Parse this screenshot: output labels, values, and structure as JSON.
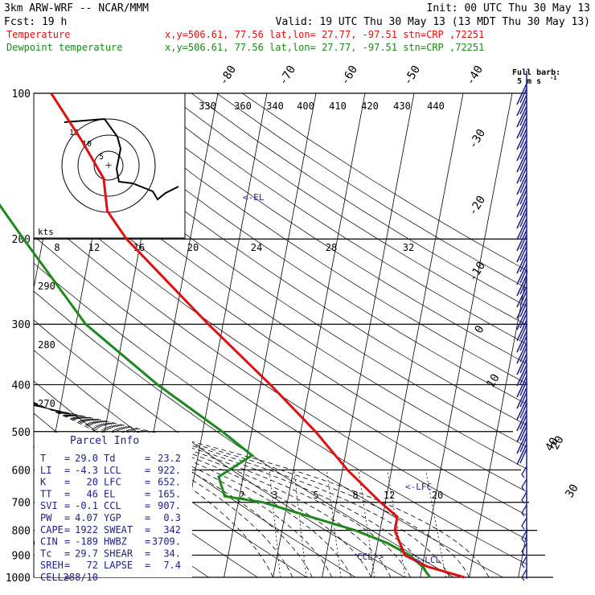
{
  "header": {
    "model": "3km ARW-WRF -- NCAR/MMM",
    "init": "Init: 00 UTC Thu 30 May 13",
    "fcst": "Fcst:    19 h",
    "valid": "Valid: 19 UTC Thu 30 May 13 (13 MDT Thu 30 May 13)"
  },
  "legend": [
    {
      "label": "Temperature",
      "info": "x,y=506.61, 77.56   lat,lon= 27.77, -97.51   stn=CRP ,72251",
      "color": "#e01010"
    },
    {
      "label": "Dewpoint temperature",
      "info": "x,y=506.61, 77.56   lat,lon= 27.77, -97.51   stn=CRP ,72251",
      "color": "#1a8a1a"
    }
  ],
  "colors": {
    "temperature": "#e01010",
    "dewpoint": "#1a8a1a",
    "wind": "#1e1e8c",
    "grid": "#000000",
    "text_blue": "#1e1e8c"
  },
  "chart_data": {
    "type": "line",
    "subtype": "skew-T log-p sounding",
    "pressure_levels": [
      100,
      200,
      300,
      400,
      500,
      600,
      700,
      800,
      900,
      1000
    ],
    "isotherm_labels": [
      "-80",
      "-70",
      "-60",
      "-50",
      "-40",
      "-30",
      "-20",
      "-10",
      "0",
      "10",
      "20",
      "30",
      "40"
    ],
    "theta_labels": [
      "330",
      "360",
      "340",
      "400",
      "410",
      "420",
      "430",
      "440"
    ],
    "theta_e_labels": [
      "290",
      "280",
      "270"
    ],
    "mixing_ratio_labels": [
      "2",
      "3",
      "5",
      "8",
      "12",
      "20"
    ],
    "series": [
      {
        "name": "Temperature",
        "points": [
          {
            "p": 100,
            "t": -74
          },
          {
            "p": 125,
            "t": -66
          },
          {
            "p": 150,
            "t": -60
          },
          {
            "p": 175,
            "t": -58
          },
          {
            "p": 200,
            "t": -53
          },
          {
            "p": 250,
            "t": -42
          },
          {
            "p": 300,
            "t": -33
          },
          {
            "p": 400,
            "t": -18
          },
          {
            "p": 500,
            "t": -7
          },
          {
            "p": 600,
            "t": 1
          },
          {
            "p": 700,
            "t": 9
          },
          {
            "p": 750,
            "t": 13
          },
          {
            "p": 800,
            "t": 13
          },
          {
            "p": 900,
            "t": 16
          },
          {
            "p": 950,
            "t": 21
          },
          {
            "p": 1000,
            "t": 29
          }
        ]
      },
      {
        "name": "Dewpoint temperature",
        "points": [
          {
            "p": 100,
            "t": -86
          },
          {
            "p": 150,
            "t": -85
          },
          {
            "p": 200,
            "t": -74
          },
          {
            "p": 300,
            "t": -58
          },
          {
            "p": 400,
            "t": -41
          },
          {
            "p": 500,
            "t": -26
          },
          {
            "p": 560,
            "t": -19
          },
          {
            "p": 620,
            "t": -25
          },
          {
            "p": 680,
            "t": -23
          },
          {
            "p": 700,
            "t": -15
          },
          {
            "p": 800,
            "t": 5
          },
          {
            "p": 850,
            "t": 12
          },
          {
            "p": 900,
            "t": 17
          },
          {
            "p": 950,
            "t": 20
          },
          {
            "p": 1000,
            "t": 22
          }
        ]
      }
    ],
    "level_markers": [
      "<-EL",
      "<-LFC",
      "<-LCL",
      "CCL->"
    ],
    "hodograph": {
      "unit_label": "kts",
      "speed_rings": [
        "5",
        "10",
        "15"
      ],
      "x_labels": [
        "8",
        "12",
        "16",
        "20",
        "24",
        "28",
        "32"
      ]
    },
    "wind_barb_key": {
      "label": "Full barb:",
      "value": "5 m s",
      "unit_sup": "-1"
    },
    "parcel_info": {
      "title": "Parcel Info",
      "rows": [
        [
          "T",
          "29.0",
          "Td",
          "23.2"
        ],
        [
          "LI",
          "-4.3",
          "LCL",
          "922."
        ],
        [
          "K",
          "20",
          "LFC",
          "652."
        ],
        [
          "TT",
          "46",
          "EL",
          "165."
        ],
        [
          "SVI",
          "-0.1",
          "CCL",
          "907."
        ],
        [
          "PW",
          "4.07",
          "YGP",
          "0.3"
        ],
        [
          "CAPE",
          "1922",
          "SWEAT",
          "342"
        ],
        [
          "CIN",
          "-189",
          "HWBZ",
          "3709."
        ],
        [
          "Tc",
          "29.7",
          "SHEAR",
          "34."
        ],
        [
          "SREH",
          "72",
          "LAPSE",
          "7.4"
        ],
        [
          "CELL",
          "288/10",
          "",
          ""
        ]
      ]
    }
  }
}
